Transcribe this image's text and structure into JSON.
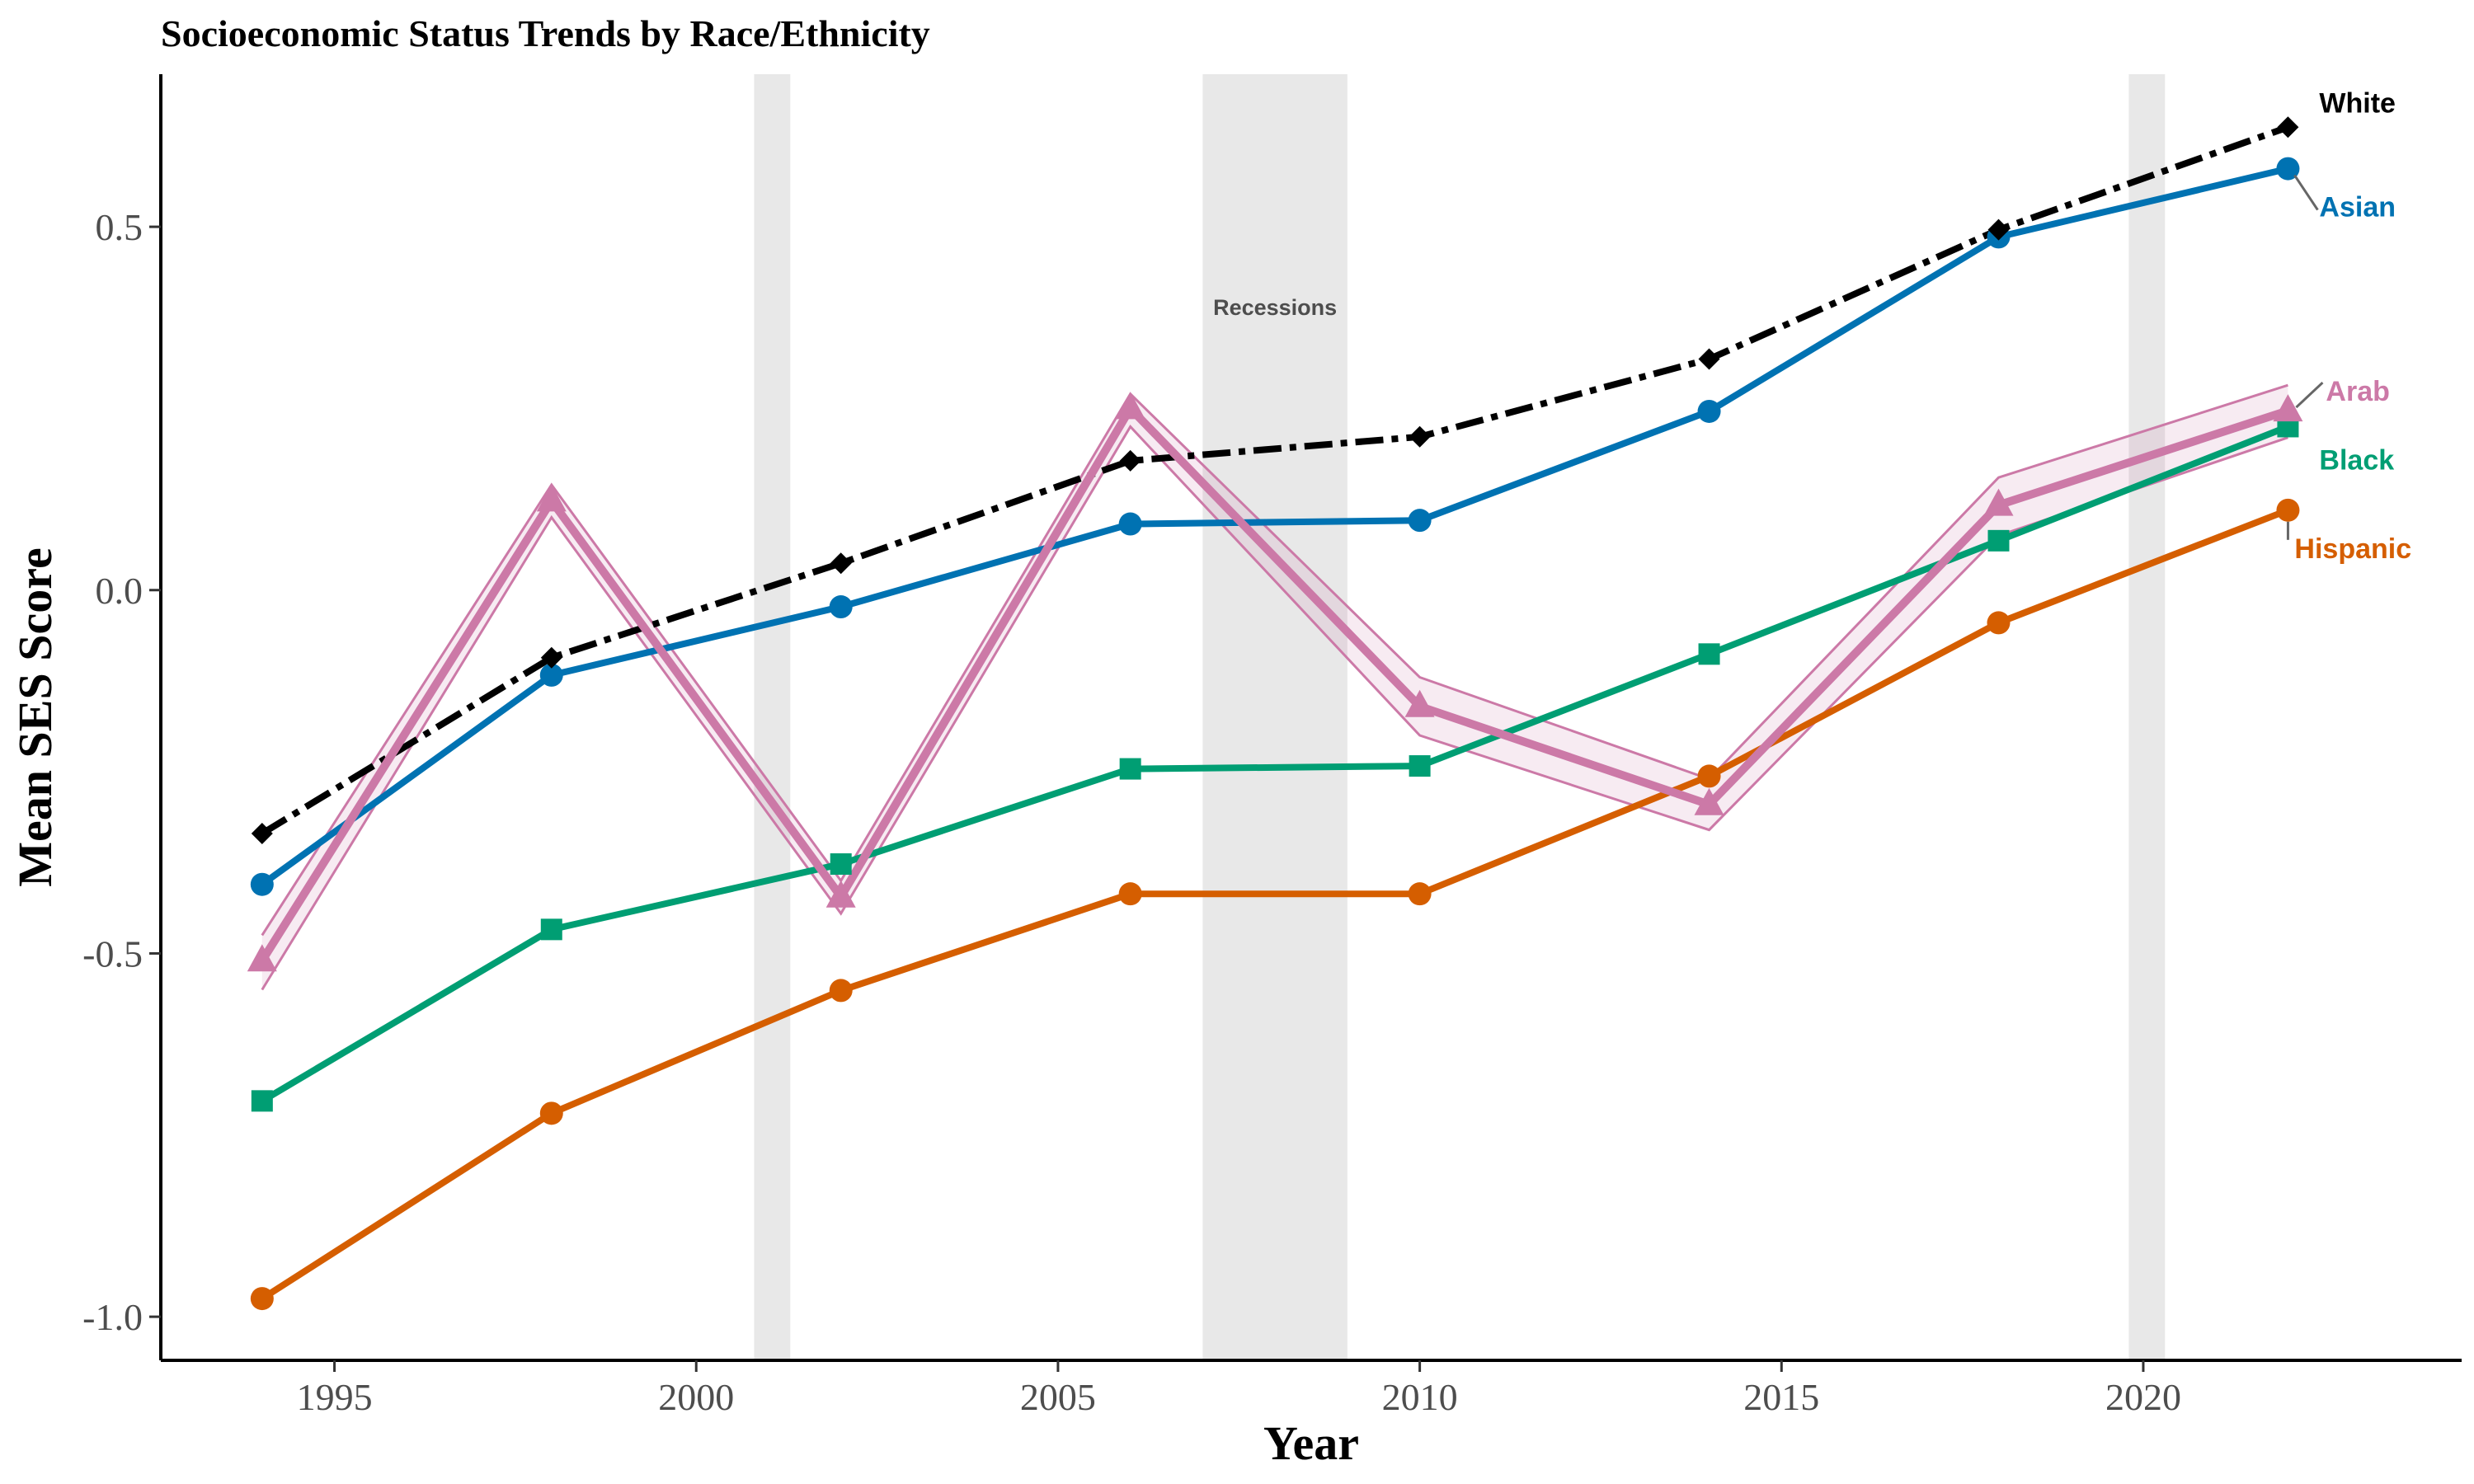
{
  "chart_data": {
    "type": "line",
    "title": "Socioeconomic Status Trends by Race/Ethnicity",
    "xlabel": "Year",
    "ylabel": "Mean SES Score",
    "xlim": [
      1992.6,
      2024.4
    ],
    "ylim": [
      -1.06,
      0.71
    ],
    "x_ticks": [
      1995,
      2000,
      2005,
      2010,
      2015,
      2020
    ],
    "y_ticks": [
      -1.0,
      -0.5,
      0.0,
      0.5
    ],
    "y_tick_labels": [
      "-1.0",
      "-0.5",
      "0.0",
      "0.5"
    ],
    "grid": false,
    "x": [
      1994,
      1998,
      2002,
      2006,
      2010,
      2014,
      2018,
      2022
    ],
    "recessions": [
      {
        "start": 2000.8,
        "end": 2001.3
      },
      {
        "start": 2007.0,
        "end": 2009.0
      },
      {
        "start": 2019.8,
        "end": 2020.3
      }
    ],
    "recession_label": "Recessions",
    "series": [
      {
        "name": "White",
        "color": "#000000",
        "marker": "diamond",
        "dash": true,
        "values": [
          -0.335,
          -0.093,
          0.037,
          0.178,
          0.211,
          0.318,
          0.496,
          0.637
        ]
      },
      {
        "name": "Asian",
        "color": "#0072B2",
        "marker": "circle",
        "dash": false,
        "values": [
          -0.405,
          -0.117,
          -0.023,
          0.091,
          0.096,
          0.246,
          0.486,
          0.58
        ]
      },
      {
        "name": "Arab",
        "color": "#CC79A7",
        "marker": "triangle",
        "dash": false,
        "band": true,
        "values": [
          -0.51,
          0.123,
          -0.422,
          0.25,
          -0.16,
          -0.295,
          0.117,
          0.247
        ],
        "lower": [
          -0.55,
          0.1,
          -0.445,
          0.225,
          -0.2,
          -0.33,
          0.075,
          0.21
        ],
        "upper": [
          -0.475,
          0.145,
          -0.4,
          0.27,
          -0.12,
          -0.26,
          0.155,
          0.282
        ]
      },
      {
        "name": "Black",
        "color": "#009E73",
        "marker": "square",
        "dash": false,
        "values": [
          -0.703,
          -0.467,
          -0.377,
          -0.246,
          -0.242,
          -0.088,
          0.068,
          0.225
        ]
      },
      {
        "name": "Hispanic",
        "color": "#D55E00",
        "marker": "circle",
        "dash": false,
        "values": [
          -0.975,
          -0.72,
          -0.551,
          -0.418,
          -0.418,
          -0.256,
          -0.045,
          0.11
        ]
      }
    ]
  }
}
